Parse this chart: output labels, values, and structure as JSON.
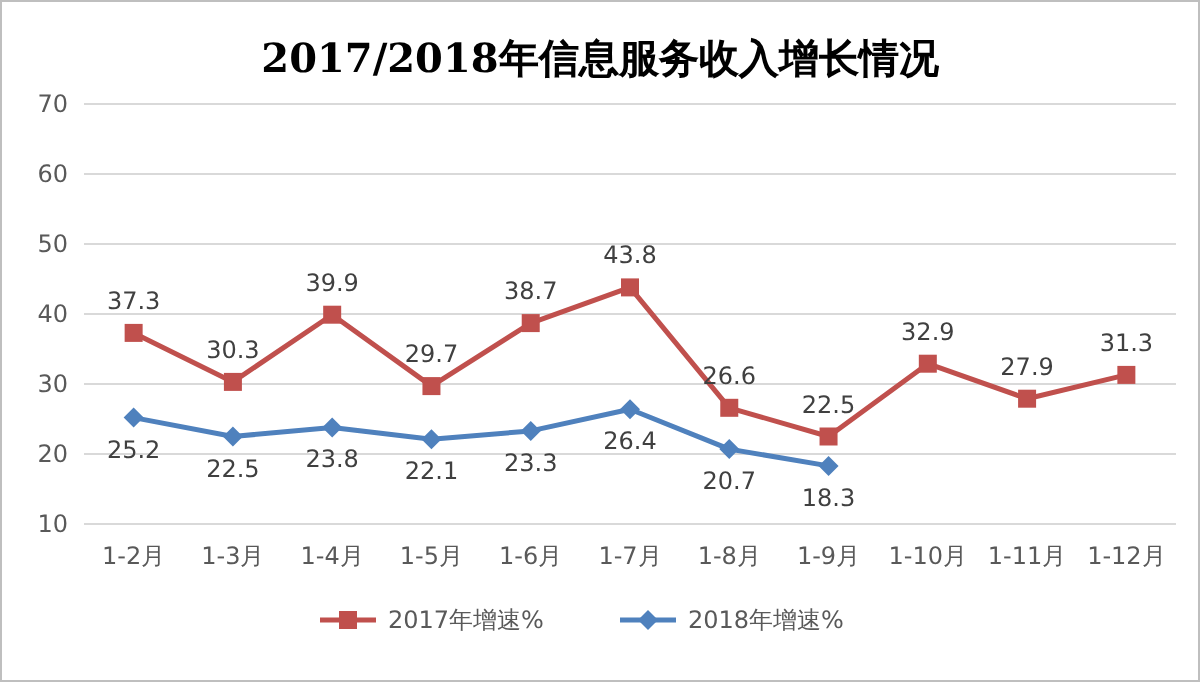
{
  "chart_data": {
    "type": "line",
    "title": "2017/2018年信息服务收入增长情况",
    "categories": [
      "1-2月",
      "1-3月",
      "1-4月",
      "1-5月",
      "1-6月",
      "1-7月",
      "1-8月",
      "1-9月",
      "1-10月",
      "1-11月",
      "1-12月"
    ],
    "series": [
      {
        "name": "2017年增速%",
        "color": "#c0504d",
        "marker": "square",
        "values": [
          37.3,
          30.3,
          39.9,
          29.7,
          38.7,
          43.8,
          26.6,
          22.5,
          32.9,
          27.9,
          31.3
        ]
      },
      {
        "name": "2018年增速%",
        "color": "#4f81bd",
        "marker": "diamond",
        "values": [
          25.2,
          22.5,
          23.8,
          22.1,
          23.3,
          26.4,
          20.7,
          18.3,
          null,
          null,
          null
        ]
      }
    ],
    "ylim": [
      10,
      70
    ],
    "yticks": [
      10,
      20,
      30,
      40,
      50,
      60,
      70
    ],
    "grid": "y",
    "legend": "bottom",
    "data_labels": true
  }
}
